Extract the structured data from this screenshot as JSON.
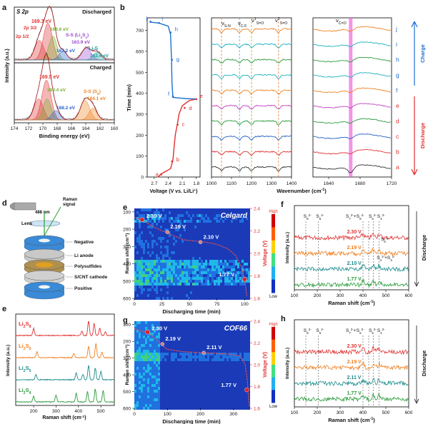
{
  "panel_letters": [
    "a",
    "b",
    "c",
    "d",
    "e",
    "f",
    "g",
    "h"
  ],
  "colors": {
    "discharge_red": "#e03030",
    "charge_blue": "#1e6fd0",
    "orange": "#f08020",
    "green": "#2a9a3a",
    "teal": "#1a8a8a",
    "magenta_band": "#ee66dd"
  },
  "chart_data": [
    {
      "id": "a",
      "type": "line",
      "title": "S 2p",
      "ylabel": "Intensity (a.u.)",
      "xlabel": "Binding energy (eV)",
      "xlim": [
        174,
        160
      ],
      "xticks": [
        174,
        172,
        170,
        168,
        166,
        164,
        162,
        160
      ],
      "subpanels": [
        {
          "state": "Discharged",
          "annotations": [
            {
              "text": "169.3 eV",
              "color": "#e03030"
            },
            {
              "text": "2p 3/2",
              "color": "#e03030"
            },
            {
              "text": "2p 1/2",
              "color": "#e03030"
            },
            {
              "text": "168.6 eV",
              "color": "#7ab030"
            },
            {
              "text": "S-S (Li",
              "color": "#9a4ad0"
            },
            {
              "text": "2",
              "color": "#9a4ad0"
            },
            {
              "text": "S",
              "color": "#9a4ad0"
            },
            {
              "text": "x",
              "color": "#9a4ad0"
            },
            {
              "text": ")",
              "color": "#9a4ad0"
            },
            {
              "text": "163.9 eV",
              "color": "#9a4ad0"
            },
            {
              "text": "Li-S",
              "color": "#20a0a0"
            },
            {
              "text": "162.4 eV",
              "color": "#20a0a0"
            },
            {
              "text": "167.2 eV",
              "color": "#2a60d0"
            }
          ],
          "peaks": [
            {
              "center": 169.3,
              "height": 0.85,
              "width": 0.9,
              "color": "#e03030"
            },
            {
              "center": 170.5,
              "height": 0.45,
              "width": 0.9,
              "color": "#e03030"
            },
            {
              "center": 168.6,
              "height": 0.55,
              "width": 0.8,
              "color": "#7ab030"
            },
            {
              "center": 167.2,
              "height": 0.2,
              "width": 0.8,
              "color": "#2a60d0"
            },
            {
              "center": 163.9,
              "height": 0.28,
              "width": 0.9,
              "color": "#9a4ad0"
            },
            {
              "center": 162.4,
              "height": 0.18,
              "width": 0.8,
              "color": "#20a0a0"
            }
          ]
        },
        {
          "state": "Charged",
          "annotations": [
            {
              "text": "169.5 eV",
              "color": "#e03030"
            },
            {
              "text": "169.4 eV",
              "color": "#7ab030"
            },
            {
              "text": "S-S (S",
              "color": "#f08020"
            },
            {
              "text": "8",
              "color": "#f08020"
            },
            {
              "text": ")",
              "color": "#f08020"
            },
            {
              "text": "164.1 eV",
              "color": "#f08020"
            },
            {
              "text": "168.2 eV",
              "color": "#2a60d0"
            }
          ],
          "peaks": [
            {
              "center": 169.5,
              "height": 0.85,
              "width": 0.9,
              "color": "#e03030"
            },
            {
              "center": 170.6,
              "height": 0.45,
              "width": 0.9,
              "color": "#e03030"
            },
            {
              "center": 169.4,
              "height": 0.45,
              "width": 0.8,
              "color": "#7ab030"
            },
            {
              "center": 168.2,
              "height": 0.2,
              "width": 0.8,
              "color": "#2a60d0"
            },
            {
              "center": 164.1,
              "height": 0.42,
              "width": 0.9,
              "color": "#f08020"
            },
            {
              "center": 163.0,
              "height": 0.25,
              "width": 0.8,
              "color": "#f08020"
            }
          ]
        }
      ]
    },
    {
      "id": "b-voltage",
      "type": "line",
      "xlabel": "Voltage (V vs. Li/Li",
      "xlabel_sup": "+",
      "xlabel_end": ")",
      "ylabel": "Time (min)",
      "xticks": [
        2.7,
        2.4,
        2.1,
        1.8
      ],
      "yticks": [
        0,
        100,
        200,
        300,
        400,
        500,
        600,
        700
      ],
      "ylim": [
        0,
        760
      ],
      "points_labels": [
        "a",
        "b",
        "c",
        "d",
        "e",
        "f",
        "g",
        "h",
        "i",
        "j"
      ],
      "discharge": [
        [
          2.62,
          0
        ],
        [
          2.55,
          15
        ],
        [
          2.35,
          40
        ],
        [
          2.3,
          80
        ],
        [
          2.28,
          130
        ],
        [
          2.25,
          200
        ],
        [
          2.2,
          260
        ],
        [
          2.17,
          300
        ],
        [
          2.1,
          340
        ],
        [
          1.95,
          365
        ],
        [
          1.8,
          372
        ]
      ],
      "charge": [
        [
          1.8,
          372
        ],
        [
          2.05,
          375
        ],
        [
          2.3,
          380
        ],
        [
          2.32,
          450
        ],
        [
          2.33,
          560
        ],
        [
          2.35,
          680
        ],
        [
          2.4,
          720
        ],
        [
          2.6,
          735
        ],
        [
          2.8,
          740
        ]
      ]
    },
    {
      "id": "b-ftir",
      "type": "line",
      "xlabel": "Wavenumber (cm",
      "xlabel_sup": "-1",
      "xlabel_end": ")",
      "left_range": [
        1000,
        1400
      ],
      "left_ticks": [
        1000,
        1100,
        1200,
        1300,
        1400
      ],
      "right_range": [
        1620,
        1720
      ],
      "right_ticks": [
        1640,
        1680,
        1720
      ],
      "band_labels": [
        "ν",
        "S-N",
        "C-F",
        "S=O",
        "1",
        "2",
        "C=O"
      ],
      "band_positions": [
        1050,
        1140,
        1200,
        1335
      ],
      "co_band": 1668,
      "labels": [
        "a",
        "b",
        "c",
        "d",
        "e",
        "f",
        "g",
        "h",
        "i",
        "j"
      ],
      "colors": [
        "#333333",
        "#e03030",
        "#2060c0",
        "#2a9a3a",
        "#c040c0",
        "#f08020",
        "#20b0c0",
        "#2a9a3a",
        "#20b0c0",
        "#f08020"
      ],
      "side_labels": [
        "Charge",
        "Discharge"
      ]
    },
    {
      "id": "c",
      "type": "table",
      "labels": [
        "Raman",
        "signal",
        "488 nm",
        "Lens",
        "Negative",
        "Li anode",
        "Polysulfides",
        "S/CNT cathode",
        "Positive"
      ]
    },
    {
      "id": "d",
      "type": "line",
      "xlabel": "Raman shift (cm",
      "xlabel_sup": "-1",
      "xlabel_end": ")",
      "ylabel": "Intensity (a.u.)",
      "xticks": [
        200,
        300,
        400,
        500
      ],
      "series": [
        {
          "name": "Li",
          "sub": "2",
          "tail": "S",
          "sub2": "8",
          "color": "#e03030"
        },
        {
          "name": "Li",
          "sub": "2",
          "tail": "S",
          "sub2": "6",
          "color": "#f08020"
        },
        {
          "name": "Li",
          "sub": "2",
          "tail": "S",
          "sub2": "5",
          "color": "#1a8a8a"
        },
        {
          "name": "Li",
          "sub": "2",
          "tail": "S",
          "sub2": "4",
          "color": "#2a9a3a"
        }
      ]
    },
    {
      "id": "e",
      "type": "heatmap",
      "title": "Celgard",
      "xlabel": "Discharging time (min)",
      "ylabel": "Raman shift (cm",
      "ylabel_sup": "-1",
      "ylabel_end": ")",
      "right_label": "Voltage (V)",
      "xticks": [
        0,
        25,
        50,
        75,
        100
      ],
      "yticks": [
        100,
        200,
        300,
        400,
        500,
        600
      ],
      "right_ticks": [
        1.6,
        1.8,
        2.0,
        2.2,
        2.4
      ],
      "colorbar": [
        "High",
        "Low"
      ],
      "voltage_labels": [
        "2.30 V",
        "2.19 V",
        "2.10 V",
        "1.77 V"
      ],
      "voltage_points": [
        [
          7,
          2.3
        ],
        [
          30,
          2.19
        ],
        [
          60,
          2.1
        ],
        [
          100,
          1.77
        ]
      ],
      "voltage_curve": [
        [
          0,
          2.32
        ],
        [
          3,
          2.31
        ],
        [
          7,
          2.3
        ],
        [
          15,
          2.25
        ],
        [
          25,
          2.2
        ],
        [
          35,
          2.16
        ],
        [
          45,
          2.12
        ],
        [
          55,
          2.11
        ],
        [
          65,
          2.1
        ],
        [
          75,
          2.08
        ],
        [
          85,
          2.04
        ],
        [
          92,
          1.98
        ],
        [
          97,
          1.88
        ],
        [
          100,
          1.77
        ],
        [
          102,
          1.62
        ]
      ]
    },
    {
      "id": "f",
      "type": "line",
      "xlabel": "Raman shift (cm",
      "xlabel_sup": "-1",
      "xlabel_end": ")",
      "ylabel": "Intensity (a.u.)",
      "side_label": "Discharge",
      "xticks": [
        100,
        200,
        300,
        400,
        500,
        600
      ],
      "top_labels": [
        "S",
        "8",
        "2-",
        "S",
        "5",
        "2-",
        "S",
        "7",
        "2-",
        "+S",
        "6",
        "2-",
        "S",
        "5",
        "2-",
        "S",
        "4",
        "2-"
      ],
      "extra_labels": [
        {
          "base": "S",
          "sub": "6",
          "sup": "2-"
        },
        {
          "base": "S",
          "sub": "4",
          "sup": "2-"
        },
        {
          "base": "+S",
          "sub": "3",
          "sup": "2-"
        }
      ],
      "series": [
        {
          "name": "2.30 V",
          "color": "#e03030"
        },
        {
          "name": "2.19 V",
          "color": "#f08020"
        },
        {
          "name": "2.10 V",
          "color": "#1a8a8a"
        },
        {
          "name": "1.77 V",
          "color": "#2a9a3a"
        }
      ]
    },
    {
      "id": "g",
      "type": "heatmap",
      "title": "COF66",
      "xlabel": "Discharging time (min)",
      "ylabel": "Raman shift (cm",
      "ylabel_sup": "-1",
      "ylabel_end": ")",
      "right_label": "Voltage (V)",
      "xticks": [
        0,
        100,
        200,
        300
      ],
      "yticks": [
        100,
        200,
        300,
        400,
        500,
        600
      ],
      "right_ticks": [
        1.6,
        1.8,
        2.0,
        2.2,
        2.4
      ],
      "colorbar": [
        "High",
        "Low"
      ],
      "voltage_labels": [
        "2.30 V",
        "2.19 V",
        "2.11 V",
        "1.77 V"
      ],
      "voltage_points": [
        [
          40,
          2.3
        ],
        [
          85,
          2.19
        ],
        [
          210,
          2.11
        ],
        [
          340,
          1.77
        ]
      ],
      "voltage_curve": [
        [
          0,
          2.33
        ],
        [
          20,
          2.31
        ],
        [
          40,
          2.3
        ],
        [
          60,
          2.25
        ],
        [
          80,
          2.19
        ],
        [
          100,
          2.14
        ],
        [
          150,
          2.12
        ],
        [
          210,
          2.11
        ],
        [
          280,
          2.1
        ],
        [
          320,
          2.08
        ],
        [
          335,
          2.0
        ],
        [
          342,
          1.85
        ],
        [
          345,
          1.7
        ],
        [
          348,
          1.62
        ]
      ]
    },
    {
      "id": "h",
      "type": "line",
      "xlabel": "Raman shift (cm",
      "xlabel_sup": "-1",
      "xlabel_end": ")",
      "ylabel": "Intensity (a.u.)",
      "side_label": "Discharge",
      "xticks": [
        100,
        200,
        300,
        400,
        500,
        600
      ],
      "top_labels": [
        "S",
        "8",
        "2-",
        "S",
        "5",
        "2-",
        "S",
        "7",
        "2-",
        "+S",
        "6",
        "2-",
        "S",
        "5",
        "2-",
        "S",
        "4",
        "2-"
      ],
      "series": [
        {
          "name": "2.30 V",
          "color": "#e03030"
        },
        {
          "name": "2.19 V",
          "color": "#f08020"
        },
        {
          "name": "2.11 V",
          "color": "#1a8a8a"
        },
        {
          "name": "1.77 V",
          "color": "#2a9a3a"
        }
      ]
    }
  ]
}
